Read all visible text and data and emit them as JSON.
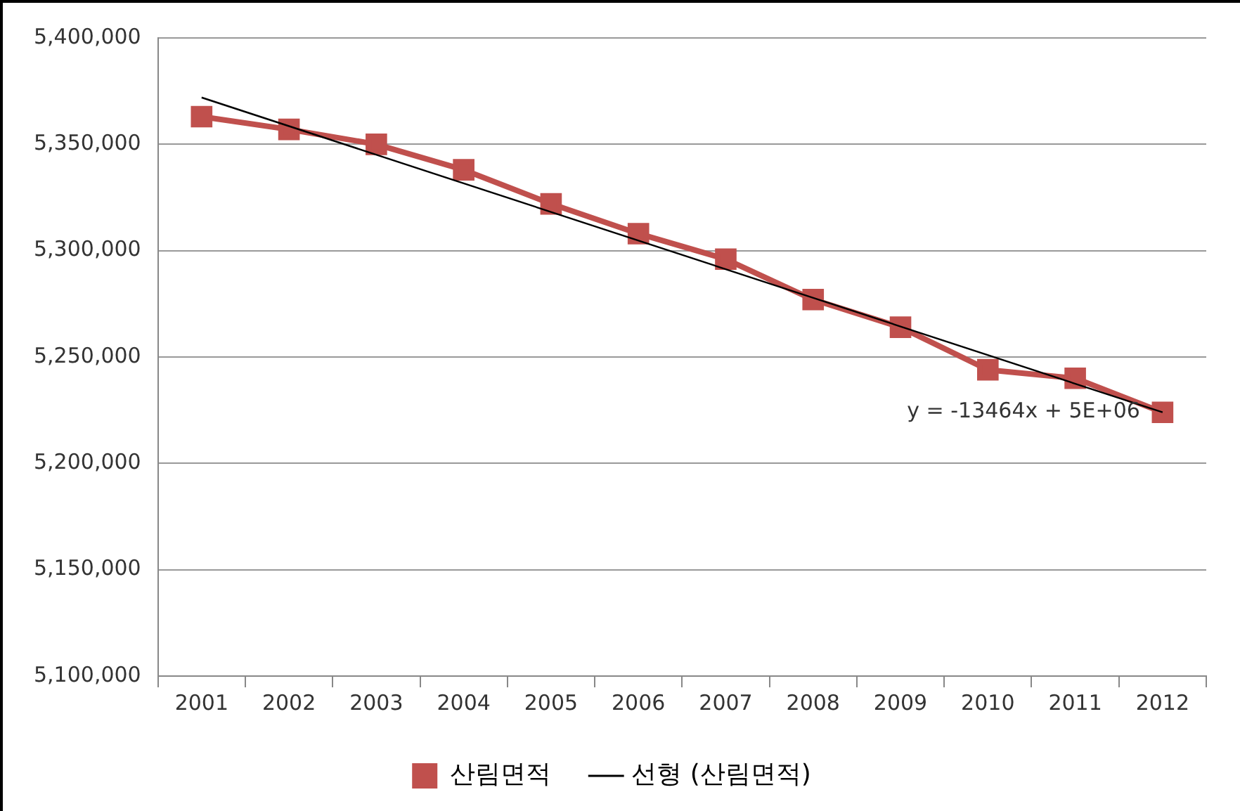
{
  "chart_data": {
    "type": "line",
    "categories": [
      "2001",
      "2002",
      "2003",
      "2004",
      "2005",
      "2006",
      "2007",
      "2008",
      "2009",
      "2010",
      "2011",
      "2012"
    ],
    "series": [
      {
        "name": "산림면적",
        "color": "#c0504d",
        "values": [
          5363000,
          5357000,
          5350000,
          5338000,
          5322000,
          5308000,
          5296000,
          5277000,
          5264000,
          5244000,
          5240000,
          5224000
        ],
        "marker": "square"
      },
      {
        "name": "선형 (산림면적)",
        "color": "#000000",
        "values": [
          5372000,
          null,
          null,
          null,
          null,
          null,
          null,
          null,
          null,
          null,
          null,
          5224000
        ],
        "marker": "none"
      }
    ],
    "ylim": [
      5100000,
      5400000
    ],
    "yticks": [
      {
        "value": 5100000,
        "label": "5,100,000"
      },
      {
        "value": 5150000,
        "label": "5,150,000"
      },
      {
        "value": 5200000,
        "label": "5,200,000"
      },
      {
        "value": 5250000,
        "label": "5,250,000"
      },
      {
        "value": 5300000,
        "label": "5,300,000"
      },
      {
        "value": 5350000,
        "label": "5,350,000"
      },
      {
        "value": 5400000,
        "label": "5,400,000"
      }
    ],
    "grid": "y",
    "legend": "bottom",
    "line_style": "solid",
    "annotations": [
      "y = -13464x + 5E+06"
    ]
  }
}
